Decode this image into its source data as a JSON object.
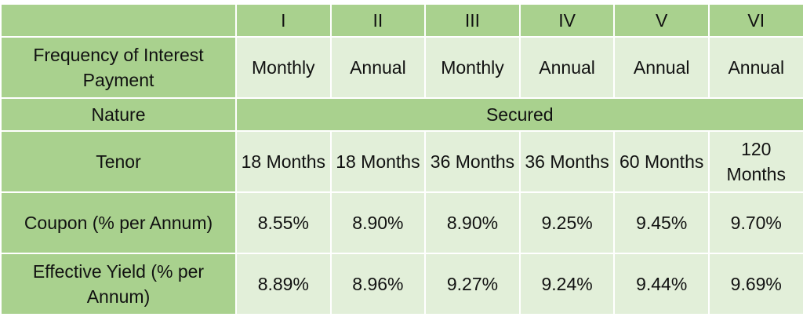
{
  "table": {
    "corner": "",
    "series": [
      "I",
      "II",
      "III",
      "IV",
      "V",
      "VI"
    ],
    "rows": {
      "frequency": {
        "label": "Frequency of Interest Payment",
        "values": [
          "Monthly",
          "Annual",
          "Monthly",
          "Annual",
          "Annual",
          "Annual"
        ]
      },
      "nature": {
        "label": "Nature",
        "value": "Secured"
      },
      "tenor": {
        "label": "Tenor",
        "values": [
          "18 Months",
          "18 Months",
          "36 Months",
          "36 Months",
          "60 Months",
          "120 Months"
        ]
      },
      "coupon": {
        "label": "Coupon (% per Annum)",
        "values": [
          "8.55%",
          "8.90%",
          "8.90%",
          "9.25%",
          "9.45%",
          "9.70%"
        ]
      },
      "yield": {
        "label": "Effective Yield (% per Annum)",
        "values": [
          "8.89%",
          "8.96%",
          "9.27%",
          "9.24%",
          "9.44%",
          "9.69%"
        ]
      }
    }
  },
  "colors": {
    "header_green": "#a9d18e",
    "cell_light_green": "#e2efd9",
    "border": "#ffffff"
  }
}
